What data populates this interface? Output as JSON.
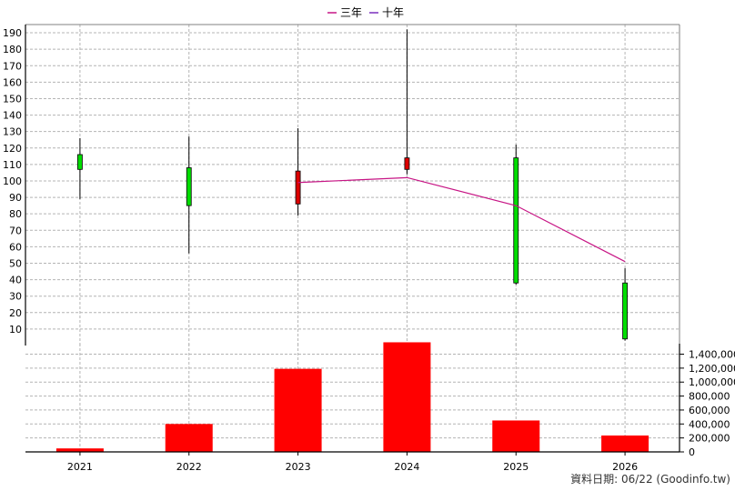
{
  "chart_data": {
    "type": "candlestick+line+bar",
    "legend": [
      {
        "label": "三年",
        "color": "#c71585"
      },
      {
        "label": "十年",
        "color": "#7b2fbe"
      }
    ],
    "x_categories": [
      "2021",
      "2022",
      "2023",
      "2024",
      "2025",
      "2026"
    ],
    "price_axis": {
      "ylim": [
        0,
        195
      ],
      "ticks": [
        10,
        20,
        30,
        40,
        50,
        60,
        70,
        80,
        90,
        100,
        110,
        120,
        130,
        140,
        150,
        160,
        170,
        180,
        190
      ]
    },
    "candles": [
      {
        "x": "2021",
        "open": 107,
        "close": 116,
        "high": 126,
        "low": 89,
        "color": "#00dd00"
      },
      {
        "x": "2022",
        "open": 85,
        "close": 108,
        "high": 127,
        "low": 56,
        "color": "#00dd00"
      },
      {
        "x": "2023",
        "open": 106,
        "close": 86,
        "high": 132,
        "low": 79,
        "color": "#dd0000"
      },
      {
        "x": "2024",
        "open": 114,
        "close": 107,
        "high": 192,
        "low": 104,
        "color": "#dd0000"
      },
      {
        "x": "2025",
        "open": 38,
        "close": 114,
        "high": 122,
        "low": 37,
        "color": "#00dd00"
      },
      {
        "x": "2026",
        "open": 4,
        "close": 38,
        "high": 47,
        "low": 3,
        "color": "#00dd00"
      }
    ],
    "line_series": [
      {
        "color": "#c71585",
        "points": [
          {
            "x": "2023",
            "y": 99
          },
          {
            "x": "2024",
            "y": 102
          },
          {
            "x": "2025",
            "y": 85
          },
          {
            "x": "2026",
            "y": 51
          }
        ]
      }
    ],
    "volume_axis": {
      "ylim": [
        0,
        1550000
      ],
      "ticks": [
        0,
        200000,
        400000,
        600000,
        800000,
        1000000,
        1200000,
        1400000
      ],
      "tick_labels": [
        "0",
        "200,000",
        "400,000",
        "600,000",
        "800,000",
        "1,000,000",
        "1,200,000",
        "1,400,000"
      ]
    },
    "volume_bars": {
      "color": "#ff0000",
      "values": [
        50000,
        400000,
        1190000,
        1570000,
        450000,
        235000
      ]
    },
    "footer": "資料日期: 06/22  (Goodinfo.tw)"
  }
}
